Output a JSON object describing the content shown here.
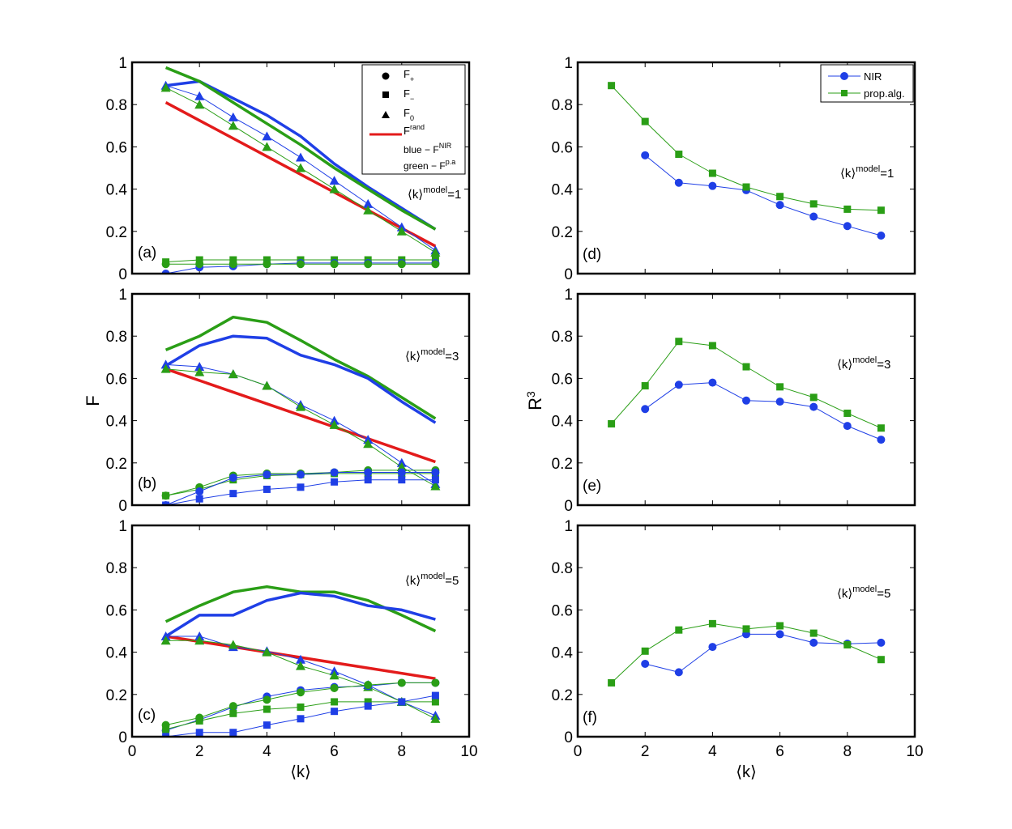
{
  "colors": {
    "nir": "#1f3fe6",
    "pa": "#2a9e16",
    "rand": "#e31b1b",
    "axis": "#000000"
  },
  "axes_text": {
    "left_ylabel": "F",
    "right_ylabel": "R",
    "right_ylabel_sup": "3",
    "xlabel_left": "⟨k⟩",
    "xlabel_right": "⟨k⟩"
  },
  "legend_left": {
    "f_plus": "F",
    "f_plus_sub": "+",
    "f_minus": "F",
    "f_minus_sub": "−",
    "f_zero": "F",
    "f_zero_sub": "0",
    "f_rand": "F",
    "f_rand_sup": "rand",
    "blue_line": "blue − F",
    "blue_sup": "NIR",
    "green_line": "green − F",
    "green_sup": "p.a"
  },
  "legend_right": {
    "nir": "NIR",
    "pa": "prop.alg."
  },
  "chart_data": [
    {
      "panel": "(a)",
      "type": "line",
      "annotation": "⟨k⟩",
      "annotation_sup": "model",
      "annotation_val": "=1",
      "xlim": [
        0,
        10
      ],
      "ylim": [
        0,
        1
      ],
      "xticks": [
        "0",
        "2",
        "4",
        "6",
        "8",
        "10"
      ],
      "yticks": [
        "0",
        "0.2",
        "0.4",
        "0.6",
        "0.8",
        "1"
      ],
      "series": [
        {
          "name": "F_rand",
          "color": "rand",
          "marker": "none",
          "width": 3.5,
          "x": [
            1,
            9
          ],
          "y": [
            0.81,
            0.13
          ]
        },
        {
          "name": "F_NIR (total)",
          "color": "nir",
          "marker": "none",
          "width": 3.5,
          "x": [
            1,
            2,
            3,
            4,
            5,
            6,
            7,
            8,
            9
          ],
          "y": [
            0.89,
            0.91,
            0.83,
            0.75,
            0.65,
            0.52,
            0.41,
            0.31,
            0.21
          ]
        },
        {
          "name": "F_p.a (total)",
          "color": "pa",
          "marker": "none",
          "width": 3.5,
          "x": [
            1,
            2,
            3,
            4,
            5,
            6,
            7,
            8,
            9
          ],
          "y": [
            0.975,
            0.91,
            0.81,
            0.71,
            0.61,
            0.5,
            0.4,
            0.3,
            0.21
          ]
        },
        {
          "name": "F0 NIR",
          "color": "nir",
          "marker": "triangle",
          "width": 1,
          "x": [
            1,
            2,
            3,
            4,
            5,
            6,
            7,
            8,
            9
          ],
          "y": [
            0.89,
            0.84,
            0.74,
            0.65,
            0.55,
            0.44,
            0.33,
            0.22,
            0.11
          ]
        },
        {
          "name": "F0 p.a",
          "color": "pa",
          "marker": "triangle",
          "width": 1,
          "x": [
            1,
            2,
            3,
            4,
            5,
            6,
            7,
            8,
            9
          ],
          "y": [
            0.88,
            0.8,
            0.7,
            0.6,
            0.5,
            0.4,
            0.3,
            0.2,
            0.1
          ]
        },
        {
          "name": "F- p.a",
          "color": "pa",
          "marker": "square",
          "width": 1,
          "x": [
            1,
            2,
            3,
            4,
            5,
            6,
            7,
            8,
            9
          ],
          "y": [
            0.055,
            0.065,
            0.065,
            0.065,
            0.065,
            0.065,
            0.065,
            0.065,
            0.065
          ]
        },
        {
          "name": "F+ NIR",
          "color": "nir",
          "marker": "circle",
          "width": 1,
          "x": [
            1,
            2,
            3,
            4,
            5,
            6,
            7,
            8,
            9
          ],
          "y": [
            0.0,
            0.03,
            0.035,
            0.045,
            0.05,
            0.05,
            0.05,
            0.05,
            0.05
          ]
        },
        {
          "name": "F+ p.a",
          "color": "pa",
          "marker": "circle",
          "width": 1,
          "x": [
            1,
            2,
            3,
            4,
            5,
            6,
            7,
            8,
            9
          ],
          "y": [
            0.045,
            0.045,
            0.045,
            0.045,
            0.045,
            0.045,
            0.045,
            0.045,
            0.045
          ]
        }
      ]
    },
    {
      "panel": "(b)",
      "type": "line",
      "annotation": "⟨k⟩",
      "annotation_sup": "model",
      "annotation_val": "=3",
      "xlim": [
        0,
        10
      ],
      "ylim": [
        0,
        1
      ],
      "xticks": [
        "0",
        "2",
        "4",
        "6",
        "8",
        "10"
      ],
      "yticks": [
        "0",
        "0.2",
        "0.4",
        "0.6",
        "0.8",
        "1"
      ],
      "series": [
        {
          "name": "F_rand",
          "color": "rand",
          "marker": "none",
          "width": 3.5,
          "x": [
            1,
            9
          ],
          "y": [
            0.645,
            0.205
          ]
        },
        {
          "name": "F_p.a (total)",
          "color": "pa",
          "marker": "none",
          "width": 3.5,
          "x": [
            1,
            2,
            3,
            4,
            5,
            6,
            7,
            8,
            9
          ],
          "y": [
            0.735,
            0.8,
            0.89,
            0.865,
            0.78,
            0.69,
            0.61,
            0.51,
            0.41
          ]
        },
        {
          "name": "F_NIR (total)",
          "color": "nir",
          "marker": "none",
          "width": 3.5,
          "x": [
            1,
            2,
            3,
            4,
            5,
            6,
            7,
            8,
            9
          ],
          "y": [
            0.66,
            0.755,
            0.8,
            0.79,
            0.71,
            0.665,
            0.6,
            0.49,
            0.39
          ]
        },
        {
          "name": "F0 NIR",
          "color": "nir",
          "marker": "triangle",
          "width": 1,
          "x": [
            1,
            2,
            3,
            4,
            5,
            6,
            7,
            8,
            9
          ],
          "y": [
            0.665,
            0.655,
            0.62,
            0.565,
            0.475,
            0.4,
            0.31,
            0.2,
            0.1
          ]
        },
        {
          "name": "F0 p.a",
          "color": "pa",
          "marker": "triangle",
          "width": 1,
          "x": [
            1,
            2,
            3,
            4,
            5,
            6,
            7,
            8,
            9
          ],
          "y": [
            0.645,
            0.63,
            0.62,
            0.565,
            0.465,
            0.38,
            0.29,
            0.18,
            0.09
          ]
        },
        {
          "name": "F+ p.a",
          "color": "pa",
          "marker": "circle",
          "width": 1,
          "x": [
            1,
            2,
            3,
            4,
            5,
            6,
            7,
            8,
            9
          ],
          "y": [
            0.045,
            0.085,
            0.14,
            0.15,
            0.15,
            0.155,
            0.165,
            0.165,
            0.165
          ]
        },
        {
          "name": "F- p.a",
          "color": "pa",
          "marker": "square",
          "width": 1,
          "x": [
            1,
            2,
            3,
            4,
            5,
            6,
            7,
            8,
            9
          ],
          "y": [
            0.045,
            0.075,
            0.12,
            0.14,
            0.145,
            0.15,
            0.15,
            0.15,
            0.15
          ]
        },
        {
          "name": "F+ NIR",
          "color": "nir",
          "marker": "circle",
          "width": 1,
          "x": [
            1,
            2,
            3,
            4,
            5,
            6,
            7,
            8,
            9
          ],
          "y": [
            0.0,
            0.065,
            0.13,
            0.145,
            0.145,
            0.155,
            0.155,
            0.155,
            0.155
          ]
        },
        {
          "name": "F- NIR",
          "color": "nir",
          "marker": "square",
          "width": 1,
          "x": [
            1,
            2,
            3,
            4,
            5,
            6,
            7,
            8,
            9
          ],
          "y": [
            0.0,
            0.03,
            0.055,
            0.075,
            0.085,
            0.11,
            0.12,
            0.12,
            0.12
          ]
        }
      ]
    },
    {
      "panel": "(c)",
      "type": "line",
      "annotation": "⟨k⟩",
      "annotation_sup": "model",
      "annotation_val": "=5",
      "xlim": [
        0,
        10
      ],
      "ylim": [
        0,
        1
      ],
      "xticks": [
        "0",
        "2",
        "4",
        "6",
        "8",
        "10"
      ],
      "yticks": [
        "0",
        "0.2",
        "0.4",
        "0.6",
        "0.8",
        "1"
      ],
      "series": [
        {
          "name": "F_rand",
          "color": "rand",
          "marker": "none",
          "width": 3.5,
          "x": [
            1,
            9
          ],
          "y": [
            0.475,
            0.275
          ]
        },
        {
          "name": "F_p.a (total)",
          "color": "pa",
          "marker": "none",
          "width": 3.5,
          "x": [
            1,
            2,
            3,
            4,
            5,
            6,
            7,
            8,
            9
          ],
          "y": [
            0.545,
            0.62,
            0.685,
            0.71,
            0.685,
            0.685,
            0.645,
            0.575,
            0.5
          ]
        },
        {
          "name": "F_NIR (total)",
          "color": "nir",
          "marker": "none",
          "width": 3.5,
          "x": [
            1,
            2,
            3,
            4,
            5,
            6,
            7,
            8,
            9
          ],
          "y": [
            0.475,
            0.575,
            0.575,
            0.645,
            0.68,
            0.665,
            0.62,
            0.6,
            0.555
          ]
        },
        {
          "name": "F0 NIR",
          "color": "nir",
          "marker": "triangle",
          "width": 1,
          "x": [
            1,
            2,
            3,
            4,
            5,
            6,
            7,
            8,
            9
          ],
          "y": [
            0.475,
            0.475,
            0.425,
            0.405,
            0.365,
            0.31,
            0.245,
            0.165,
            0.1
          ]
        },
        {
          "name": "F0 p.a",
          "color": "pa",
          "marker": "triangle",
          "width": 1,
          "x": [
            1,
            2,
            3,
            4,
            5,
            6,
            7,
            8,
            9
          ],
          "y": [
            0.455,
            0.455,
            0.435,
            0.4,
            0.335,
            0.29,
            0.235,
            0.165,
            0.085
          ]
        },
        {
          "name": "F+ NIR",
          "color": "nir",
          "marker": "circle",
          "width": 1,
          "x": [
            1,
            2,
            3,
            4,
            5,
            6,
            7,
            8,
            9
          ],
          "y": [
            0.03,
            0.08,
            0.14,
            0.19,
            0.22,
            0.235,
            0.24,
            0.255,
            0.255
          ]
        },
        {
          "name": "F+ p.a",
          "color": "pa",
          "marker": "circle",
          "width": 1,
          "x": [
            1,
            2,
            3,
            4,
            5,
            6,
            7,
            8,
            9
          ],
          "y": [
            0.055,
            0.09,
            0.145,
            0.175,
            0.21,
            0.23,
            0.245,
            0.255,
            0.255
          ]
        },
        {
          "name": "F- p.a",
          "color": "pa",
          "marker": "square",
          "width": 1,
          "x": [
            1,
            2,
            3,
            4,
            5,
            6,
            7,
            8,
            9
          ],
          "y": [
            0.035,
            0.075,
            0.11,
            0.13,
            0.14,
            0.165,
            0.165,
            0.165,
            0.165
          ]
        },
        {
          "name": "F- NIR",
          "color": "nir",
          "marker": "square",
          "width": 1,
          "x": [
            1,
            2,
            3,
            4,
            5,
            6,
            7,
            8,
            9
          ],
          "y": [
            0.0,
            0.02,
            0.02,
            0.055,
            0.085,
            0.12,
            0.145,
            0.165,
            0.195
          ]
        }
      ]
    },
    {
      "panel": "(d)",
      "type": "line",
      "annotation": "⟨k⟩",
      "annotation_sup": "model",
      "annotation_val": "=1",
      "xlim": [
        0,
        10
      ],
      "ylim": [
        0,
        1
      ],
      "xticks": [
        "0",
        "2",
        "4",
        "6",
        "8",
        "10"
      ],
      "yticks": [
        "0",
        "0.2",
        "0.4",
        "0.6",
        "0.8",
        "1"
      ],
      "series": [
        {
          "name": "NIR",
          "color": "nir",
          "marker": "circle",
          "width": 1,
          "x": [
            2,
            3,
            4,
            5,
            6,
            7,
            8,
            9
          ],
          "y": [
            0.56,
            0.43,
            0.415,
            0.395,
            0.325,
            0.27,
            0.225,
            0.18
          ]
        },
        {
          "name": "prop.alg.",
          "color": "pa",
          "marker": "square",
          "width": 1,
          "x": [
            1,
            2,
            3,
            4,
            5,
            6,
            7,
            8,
            9
          ],
          "y": [
            0.89,
            0.72,
            0.565,
            0.475,
            0.41,
            0.365,
            0.33,
            0.305,
            0.3
          ]
        }
      ]
    },
    {
      "panel": "(e)",
      "type": "line",
      "annotation": "⟨k⟩",
      "annotation_sup": "model",
      "annotation_val": "=3",
      "xlim": [
        0,
        10
      ],
      "ylim": [
        0,
        1
      ],
      "xticks": [
        "0",
        "2",
        "4",
        "6",
        "8",
        "10"
      ],
      "yticks": [
        "0",
        "0.2",
        "0.4",
        "0.6",
        "0.8",
        "1"
      ],
      "series": [
        {
          "name": "NIR",
          "color": "nir",
          "marker": "circle",
          "width": 1,
          "x": [
            2,
            3,
            4,
            5,
            6,
            7,
            8,
            9
          ],
          "y": [
            0.455,
            0.57,
            0.58,
            0.495,
            0.49,
            0.465,
            0.375,
            0.31
          ]
        },
        {
          "name": "prop.alg.",
          "color": "pa",
          "marker": "square",
          "width": 1,
          "x": [
            1,
            2,
            3,
            4,
            5,
            6,
            7,
            8,
            9
          ],
          "y": [
            0.385,
            0.565,
            0.775,
            0.755,
            0.655,
            0.56,
            0.51,
            0.435,
            0.365
          ]
        }
      ]
    },
    {
      "panel": "(f)",
      "type": "line",
      "annotation": "⟨k⟩",
      "annotation_sup": "model",
      "annotation_val": "=5",
      "xlim": [
        0,
        10
      ],
      "ylim": [
        0,
        1
      ],
      "xticks": [
        "0",
        "2",
        "4",
        "6",
        "8",
        "10"
      ],
      "yticks": [
        "0",
        "0.2",
        "0.4",
        "0.6",
        "0.8",
        "1"
      ],
      "series": [
        {
          "name": "NIR",
          "color": "nir",
          "marker": "circle",
          "width": 1,
          "x": [
            2,
            3,
            4,
            5,
            6,
            7,
            8,
            9
          ],
          "y": [
            0.345,
            0.305,
            0.425,
            0.485,
            0.485,
            0.445,
            0.44,
            0.445
          ]
        },
        {
          "name": "prop.alg.",
          "color": "pa",
          "marker": "square",
          "width": 1,
          "x": [
            1,
            2,
            3,
            4,
            5,
            6,
            7,
            8,
            9
          ],
          "y": [
            0.255,
            0.405,
            0.505,
            0.535,
            0.51,
            0.525,
            0.49,
            0.435,
            0.365
          ]
        }
      ]
    }
  ]
}
